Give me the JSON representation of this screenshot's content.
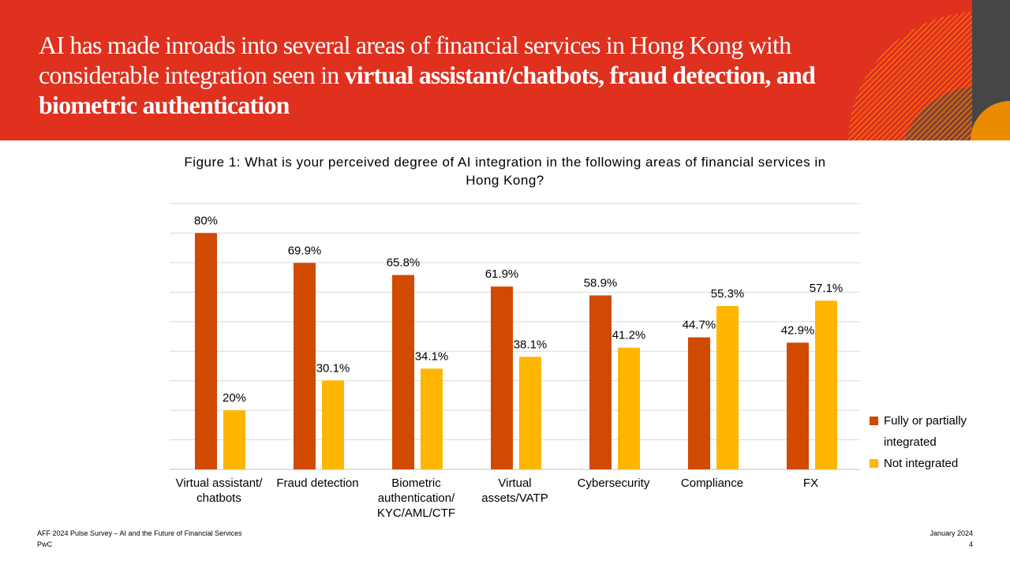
{
  "header": {
    "title_plain": "AI has made inroads into several areas of financial services in Hong Kong with considerable integration seen in ",
    "title_bold": "virtual assistant/chatbots, fraud detection, and biometric authentication"
  },
  "chart_data": {
    "type": "bar",
    "title": "Figure 1: What is your perceived degree of AI integration in the following areas of financial services in Hong Kong?",
    "categories": [
      "Virtual assistant/ chatbots",
      "Fraud detection",
      "Biometric authentication/ KYC/AML/CTF",
      "Virtual assets/VATP",
      "Cybersecurity",
      "Compliance",
      "FX"
    ],
    "series": [
      {
        "name": "Fully or partially integrated",
        "color": "#d04a02",
        "values": [
          80,
          69.9,
          65.8,
          61.9,
          58.9,
          44.7,
          42.9
        ],
        "value_labels": [
          "80%",
          "69.9%",
          "65.8%",
          "61.9%",
          "58.9%",
          "44.7%",
          "42.9%"
        ]
      },
      {
        "name": "Not integrated",
        "color": "#ffb600",
        "values": [
          20,
          30.1,
          34.1,
          38.1,
          41.2,
          55.3,
          57.1
        ],
        "value_labels": [
          "20%",
          "30.1%",
          "34.1%",
          "38.1%",
          "41.2%",
          "55.3%",
          "57.1%"
        ]
      }
    ],
    "ylim": [
      0,
      90
    ],
    "yticks": [
      0,
      10,
      20,
      30,
      40,
      50,
      60,
      70,
      80,
      90
    ],
    "grid": true,
    "legend": "right"
  },
  "footer": {
    "source": "AFF 2024 Pulse Survey – AI and the Future of Financial Services",
    "company": "PwC",
    "date": "January 2024",
    "page": "4"
  }
}
